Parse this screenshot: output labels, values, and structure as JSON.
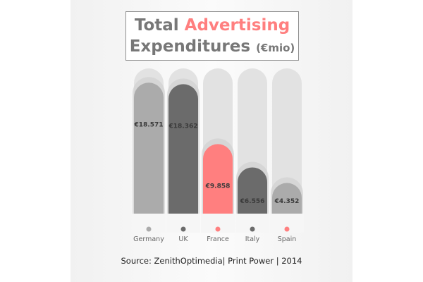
{
  "header": {
    "title_main": "Total",
    "title_accent": "Advertising",
    "title_line2": "Expenditures",
    "title_unit": "(€mio)"
  },
  "source": "Source: ZenithOptimedia| Print Power | 2014",
  "colors": {
    "track": "#e2e2e2",
    "shadow": "#d2d2d2",
    "label": "#3a3a3a",
    "axis_label": "#666666"
  },
  "chart_data": {
    "type": "bar",
    "title": "Total Advertising Expenditures (€mio)",
    "categories": [
      "Germany",
      "UK",
      "France",
      "Italy",
      "Spain"
    ],
    "values": [
      18571,
      18362,
      9858,
      6556,
      4352
    ],
    "value_labels": [
      "€18.571",
      "€18.362",
      "€9.858",
      "€6.556",
      "€4.352"
    ],
    "bar_colors": [
      "#ababab",
      "#6b6b6b",
      "#ff7f7f",
      "#6b6b6b",
      "#ababab"
    ],
    "legend_dot_colors": [
      "#ababab",
      "#6b6b6b",
      "#ff7f7f",
      "#6b6b6b",
      "#ff7f7f"
    ],
    "ylim": [
      0,
      20000
    ],
    "grid": false,
    "legend": "bottom"
  }
}
